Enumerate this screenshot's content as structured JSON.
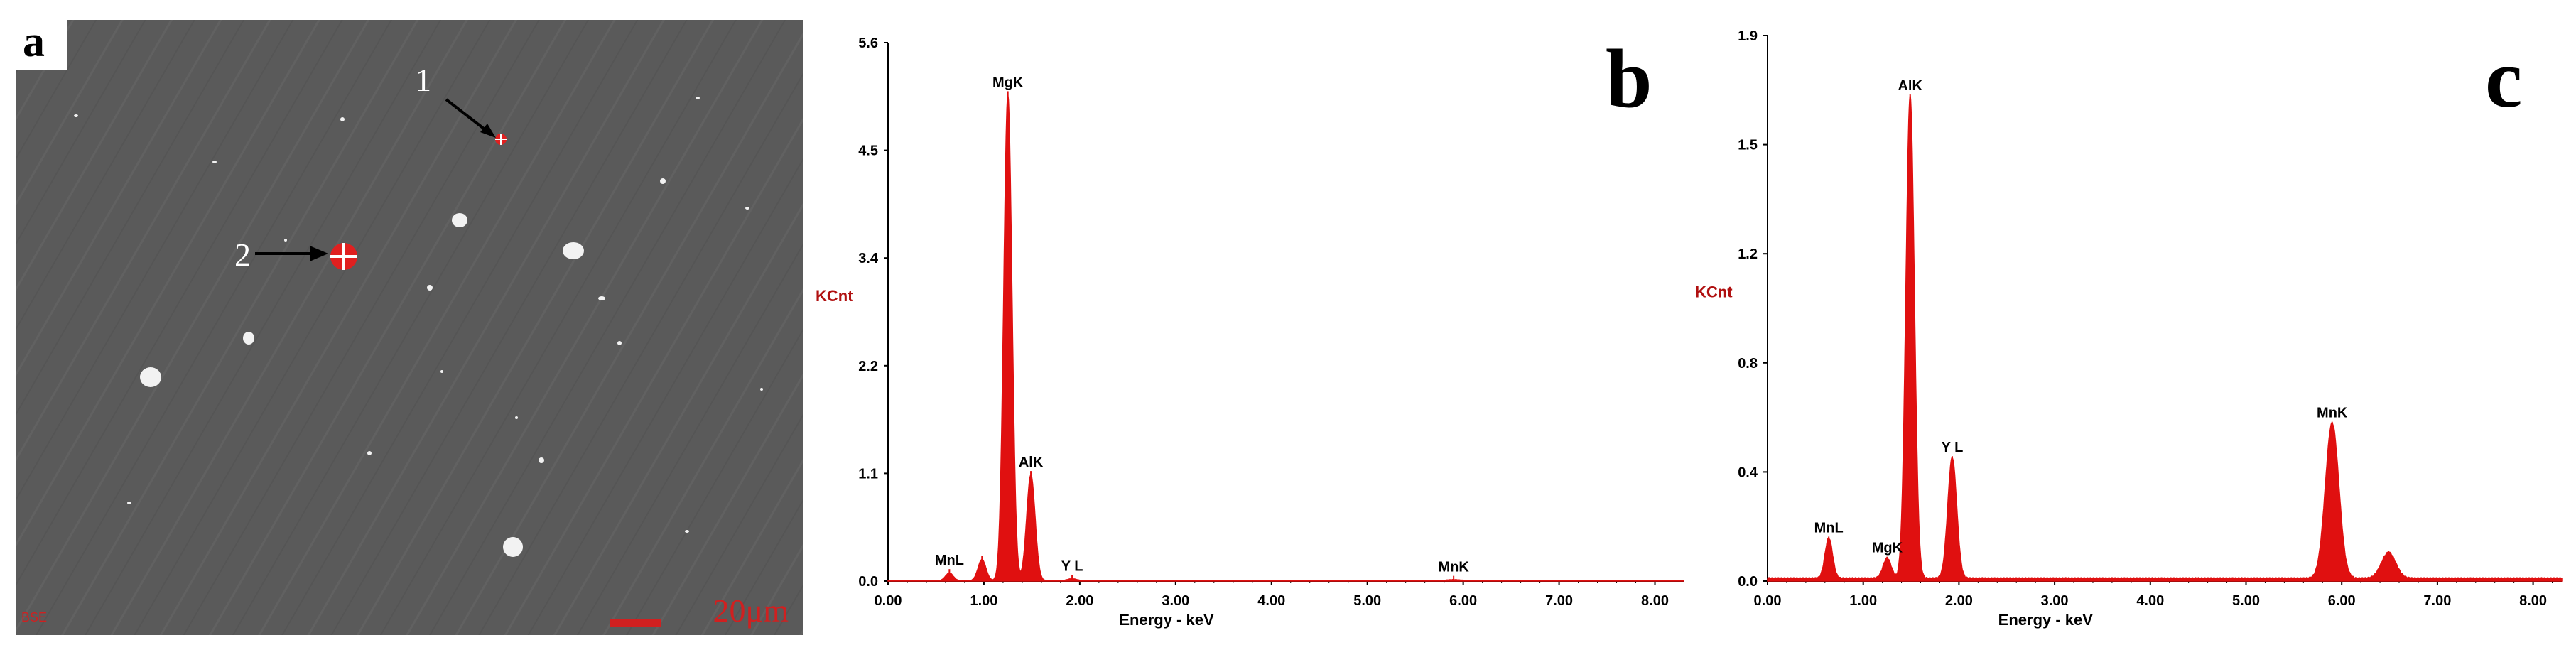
{
  "figure": {
    "panel_a": {
      "letter": "a",
      "markers": [
        {
          "label": "1"
        },
        {
          "label": "2"
        }
      ],
      "detector_label": "BSE",
      "scale_bar_label": "20μm"
    }
  },
  "chart_data": [
    {
      "panel": "b",
      "type": "line",
      "ylabel": "KCnt",
      "xlabel": "Energy - keV",
      "xlim": [
        0,
        8.3
      ],
      "ylim": [
        0,
        5.6
      ],
      "xticks": [
        "0.00",
        "1.00",
        "2.00",
        "3.00",
        "4.00",
        "5.00",
        "6.00",
        "7.00",
        "8.00"
      ],
      "yticks": [
        "0.0",
        "1.1",
        "2.2",
        "3.4",
        "4.5",
        "5.6"
      ],
      "line_color": "#e01010",
      "peaks": [
        {
          "label": "MnL",
          "energy": 0.64,
          "height": 0.08
        },
        {
          "label": "",
          "energy": 0.98,
          "height": 0.22
        },
        {
          "label": "MgK",
          "energy": 1.25,
          "height": 5.05
        },
        {
          "label": "AlK",
          "energy": 1.49,
          "height": 1.1
        },
        {
          "label": "Y L",
          "energy": 1.92,
          "height": 0.02
        },
        {
          "label": "MnK",
          "energy": 5.9,
          "height": 0.01
        }
      ]
    },
    {
      "panel": "c",
      "type": "line",
      "ylabel": "KCnt",
      "xlabel": "Energy - keV",
      "xlim": [
        0,
        8.3
      ],
      "ylim": [
        0,
        1.9
      ],
      "xticks": [
        "0.00",
        "1.00",
        "2.00",
        "3.00",
        "4.00",
        "5.00",
        "6.00",
        "7.00",
        "8.00"
      ],
      "yticks": [
        "0.0",
        "0.4",
        "0.8",
        "1.2",
        "1.5",
        "1.9"
      ],
      "line_color": "#e01010",
      "peaks": [
        {
          "label": "MnL",
          "energy": 0.64,
          "height": 0.14
        },
        {
          "label": "MgK",
          "energy": 1.25,
          "height": 0.07
        },
        {
          "label": "AlK",
          "energy": 1.49,
          "height": 1.68
        },
        {
          "label": "Y L",
          "energy": 1.93,
          "height": 0.42
        },
        {
          "label": "MnK",
          "energy": 5.9,
          "height": 0.54
        },
        {
          "label": "",
          "energy": 6.49,
          "height": 0.09
        }
      ]
    }
  ],
  "panel_letters": {
    "b": "b",
    "c": "c"
  }
}
